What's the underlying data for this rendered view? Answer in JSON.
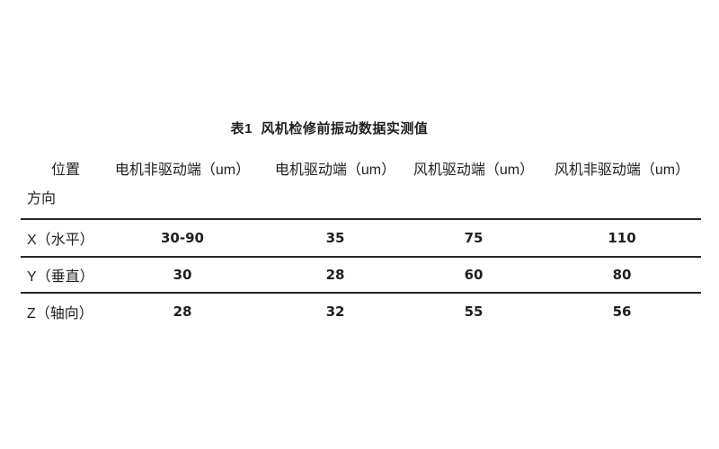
{
  "page": {
    "background": "#ffffff",
    "text_color": "#1f1f1f",
    "rule_color": "#262626"
  },
  "table": {
    "title": "表1  风机检修前振动数据实测值",
    "header": {
      "corner_top": "位置",
      "corner_bottom": "方向",
      "columns": [
        "电机非驱动端（um）",
        "电机驱动端（um）",
        "风机驱动端（um）",
        "风机非驱动端（um）"
      ]
    },
    "rows": [
      {
        "label": "X（水平）",
        "values": [
          "30-90",
          "35",
          "75",
          "110"
        ]
      },
      {
        "label": "Y（垂直）",
        "values": [
          "30",
          "28",
          "60",
          "80"
        ]
      },
      {
        "label": "Z（轴向）",
        "values": [
          "28",
          "32",
          "55",
          "56"
        ]
      }
    ]
  }
}
